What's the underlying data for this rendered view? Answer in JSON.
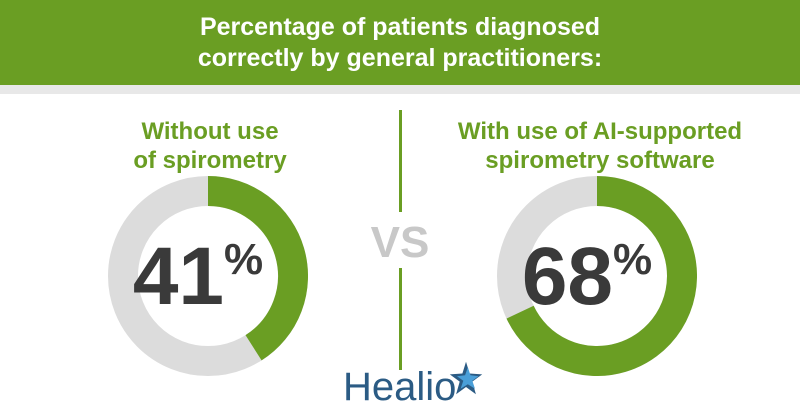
{
  "header": {
    "title_line1": "Percentage of patients diagnosed",
    "title_line2": "correctly by general practitioners:"
  },
  "comparison": {
    "separator": "VS"
  },
  "chart_data": [
    {
      "type": "pie",
      "title_line1": "Without use",
      "title_line2": "of spirometry",
      "values": [
        41,
        59
      ],
      "value_label": "41",
      "unit": "%",
      "colors": [
        "#6a9e23",
        "#dcdcdc"
      ]
    },
    {
      "type": "pie",
      "title_line1": "With use of AI-supported",
      "title_line2": "spirometry software",
      "values": [
        68,
        32
      ],
      "value_label": "68",
      "unit": "%",
      "colors": [
        "#6a9e23",
        "#dcdcdc"
      ]
    }
  ],
  "branding": {
    "logo_text": "Healio",
    "logo_color": "#2b5b84",
    "logo_star_colors": [
      "#2b5b84",
      "#4a9fd8"
    ]
  },
  "colors": {
    "accent": "#6a9e23",
    "track": "#dcdcdc",
    "text_dark": "#3a3a3a"
  }
}
